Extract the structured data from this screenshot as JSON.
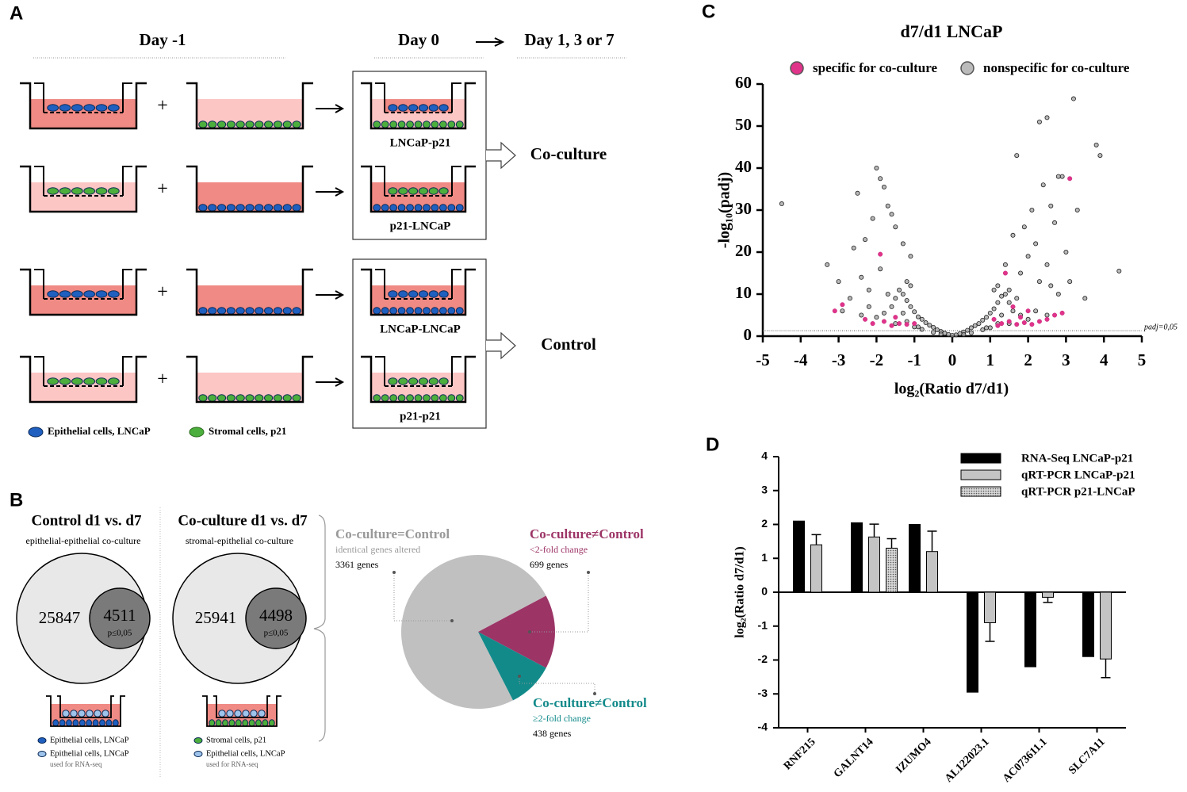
{
  "panels": {
    "a": "A",
    "b": "B",
    "c": "C",
    "d": "D"
  },
  "panel_a": {
    "days": [
      "Day -1",
      "Day 0",
      "Day 1, 3 or 7"
    ],
    "plus": "+",
    "wells": [
      "LNCaP-p21",
      "p21-LNCaP",
      "LNCaP-LNCaP",
      "p21-p21"
    ],
    "groups": [
      "Co-culture",
      "Control"
    ],
    "legend": [
      "Epithelial cells, LNCaP",
      "Stromal cells, p21"
    ]
  },
  "panel_b": {
    "venns": [
      {
        "title": "Control d1 vs. d7",
        "subtitle": "epithelial-epithelial co-culture",
        "total": "25847",
        "subset": "4511",
        "p": "p≤0,05",
        "legend": [
          "Epithelial cells, LNCaP",
          "Epithelial cells, LNCaP"
        ],
        "note": "used for RNA-seq"
      },
      {
        "title": "Co-culture d1 vs. d7",
        "subtitle": "stromal-epithelial co-culture",
        "total": "25941",
        "subset": "4498",
        "p": "p≤0,05",
        "legend": [
          "Stromal cells, p21",
          "Epithelial cells, LNCaP"
        ],
        "note": "used for RNA-seq"
      }
    ]
  },
  "chart_data": [
    {
      "type": "pie",
      "categories": [
        "Co-culture=Control",
        "Co-culture≠Control",
        "Co-culture≠Control"
      ],
      "descriptions": [
        "identical genes altered",
        "<2-fold change",
        "≥2-fold change"
      ],
      "values": [
        3361,
        699,
        438
      ],
      "value_labels": [
        "3361 genes",
        "699 genes",
        "438 genes"
      ],
      "colors": [
        "#c0c0c0",
        "#9c3466",
        "#138a8a"
      ]
    },
    {
      "type": "scatter",
      "title": "d7/d1 LNCaP",
      "xlabel": "log₂(Ratio d7/d1)",
      "ylabel": "-log₁₀(padj)",
      "xlim": [
        -5,
        5
      ],
      "xticks": [
        -5,
        -4,
        -3,
        -2,
        -1,
        0,
        1,
        2,
        3,
        4,
        5
      ],
      "ylim": [
        0,
        60
      ],
      "yticks": [
        0,
        10,
        20,
        30,
        40,
        50,
        60
      ],
      "threshold": {
        "value": 1.3,
        "label": "padj=0,05"
      },
      "series": [
        {
          "name": "specific for co-culture",
          "color": "#e0338a",
          "x": [
            -2.1,
            -1.8,
            -1.6,
            -1.4,
            -1.2,
            -1.0,
            -1.5,
            -1.9,
            -2.9,
            -3.1,
            -2.3,
            1.3,
            1.5,
            1.7,
            1.9,
            2.1,
            2.3,
            2.5,
            2.7,
            2.9,
            1.4,
            3.1,
            1.1,
            1.6,
            2.0,
            1.2,
            1.8
          ],
          "y": [
            3,
            3.5,
            2.5,
            3,
            2.8,
            3,
            4.5,
            19.5,
            7.5,
            6,
            4,
            3,
            3.5,
            2.8,
            3.2,
            2.8,
            3.5,
            4,
            5,
            5.5,
            15,
            37.5,
            4,
            7,
            6,
            2.5,
            4.5
          ]
        },
        {
          "name": "nonspecific for co-culture",
          "color": "#9a9a9a",
          "x": [
            -4.5,
            -3.3,
            -2.9,
            -2.5,
            -2.6,
            -2.0,
            -1.9,
            -1.8,
            -2.1,
            -1.7,
            -1.6,
            -1.5,
            -2.3,
            -2.4,
            -1.3,
            -1.1,
            -2.2,
            -1.9,
            -1.2,
            -3.0,
            -2.7,
            1.7,
            2.3,
            2.5,
            2.9,
            2.8,
            3.2,
            3.8,
            3.9,
            4.4,
            3.3,
            3.5,
            2.1,
            2.4,
            2.6,
            2.7,
            1.9,
            1.6,
            2.2,
            2.0,
            1.4,
            1.8,
            2.5,
            3.0,
            3.1,
            2.6,
            1.2,
            1.5,
            2.3,
            2.8,
            0,
            0.1,
            -0.1,
            0.2,
            -0.2,
            0.3,
            -0.3,
            0.4,
            -0.4,
            0.5,
            -0.5,
            0.6,
            -0.6,
            0.7,
            -0.7,
            0.8,
            -0.8,
            0.9,
            -0.9,
            1,
            -1,
            1.1,
            -1.1,
            1.2,
            -1.2,
            1.3,
            -1.3,
            1.4,
            -1.4,
            1.5,
            -1.5,
            1.6,
            -1.6,
            1.8,
            -1.8,
            2.0,
            -2.0,
            1.2,
            -1.2,
            0.8,
            -0.8,
            1.5,
            -1.5,
            0.5,
            -0.5,
            1.0,
            -1.0,
            2.2,
            -2.2,
            1.3,
            -1.3,
            0.9,
            -0.9,
            1.7,
            -1.7,
            1.1,
            -1.1,
            0.3,
            -0.3,
            2.5,
            -2.4
          ],
          "y": [
            31.5,
            17,
            6,
            34,
            21,
            40,
            37.5,
            35.5,
            28,
            31,
            29,
            26,
            23,
            14,
            22,
            19,
            11,
            16,
            13,
            13,
            9,
            43,
            51,
            52,
            38,
            38,
            56.5,
            45.5,
            43,
            15.5,
            30,
            9,
            30,
            36,
            31,
            27,
            26,
            24,
            22,
            19,
            17,
            15,
            17,
            20,
            13,
            12,
            12,
            11,
            13,
            10,
            0.2,
            0.3,
            0.4,
            0.6,
            0.7,
            1,
            1.1,
            1.4,
            1.5,
            2,
            2.1,
            2.5,
            2.6,
            3,
            3.2,
            3.8,
            4,
            4.5,
            4.6,
            5.5,
            5.8,
            6.5,
            7,
            8,
            8.5,
            9.5,
            10,
            10,
            11,
            8,
            9,
            6,
            7,
            5,
            5.5,
            4,
            4.5,
            3,
            3.5,
            1.5,
            1.6,
            3,
            3,
            0.8,
            0.9,
            2,
            2.2,
            6,
            7,
            5,
            5.5,
            2,
            2.2,
            9,
            10,
            11,
            12,
            0.4,
            0.5,
            5,
            5
          ]
        }
      ]
    },
    {
      "type": "bar",
      "ylabel": "log₂(Ratio d7/d1)",
      "categories": [
        "RNF215",
        "GALNT14",
        "IZUMO4",
        "AL122023.1",
        "AC073611.1",
        "SLC7A11"
      ],
      "ylim": [
        -4,
        4
      ],
      "yticks": [
        -4,
        -3,
        -2,
        -1,
        0,
        1,
        2,
        3,
        4
      ],
      "series": [
        {
          "name": "RNA-Seq  LNCaP-p21",
          "color": "#000000",
          "values": [
            2.1,
            2.05,
            2.0,
            -2.95,
            -2.2,
            -1.9
          ]
        },
        {
          "name": "qRT-PCR  LNCaP-p21",
          "color": "#c4c4c4",
          "values": [
            1.4,
            1.63,
            1.2,
            -0.9,
            -0.15,
            -1.97
          ],
          "errors": [
            0.3,
            0.38,
            0.6,
            0.55,
            0.15,
            0.55
          ]
        },
        {
          "name": "qRT-PCR  p21-LNCaP",
          "color": "#b0b0b0",
          "pattern": "dots",
          "values": [
            null,
            1.3,
            null,
            null,
            null,
            null
          ],
          "errors": [
            null,
            0.28,
            null,
            null,
            null,
            null
          ]
        }
      ]
    }
  ]
}
